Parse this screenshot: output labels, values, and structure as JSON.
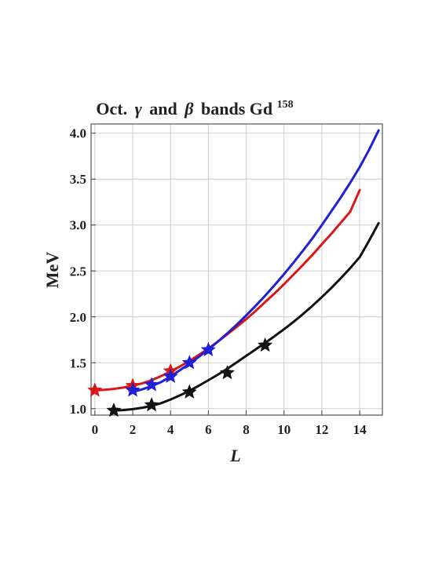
{
  "chart_data": {
    "type": "line",
    "title": {
      "prefix": "Oct.",
      "gamma": "γ",
      "and": "and",
      "beta": "β",
      "suffix": "bands Gd",
      "superscript": "158"
    },
    "xlabel": "L",
    "ylabel": "MeV",
    "xlim": [
      -0.2,
      15.2
    ],
    "ylim": [
      0.93,
      4.1
    ],
    "grid": true,
    "x_ticks": [
      0,
      2,
      4,
      6,
      8,
      10,
      12,
      14
    ],
    "x_tick_labels": [
      "0",
      "2",
      "4",
      "6",
      "8",
      "10",
      "12",
      "14"
    ],
    "y_ticks": [
      1.0,
      1.5,
      2.0,
      2.5,
      3.0,
      3.5,
      4.0
    ],
    "y_tick_labels": [
      "1.0",
      "1.5",
      "2.0",
      "2.5",
      "3.0",
      "3.5",
      "4.0"
    ],
    "series": [
      {
        "color": "#d81818",
        "curve": {
          "x": [
            0,
            0.5,
            1,
            1.5,
            2,
            2.5,
            3,
            3.5,
            4,
            4.5,
            5,
            5.5,
            6,
            6.5,
            7,
            7.5,
            8,
            8.5,
            9,
            9.5,
            10,
            10.5,
            11,
            11.5,
            12,
            12.5,
            13,
            13.5,
            14
          ],
          "y": [
            1.2,
            1.205,
            1.215,
            1.23,
            1.25,
            1.275,
            1.31,
            1.355,
            1.405,
            1.46,
            1.52,
            1.585,
            1.655,
            1.73,
            1.81,
            1.89,
            1.975,
            2.065,
            2.16,
            2.255,
            2.355,
            2.46,
            2.565,
            2.675,
            2.79,
            2.905,
            3.025,
            3.145,
            3.38
          ]
        },
        "points": {
          "x": [
            0,
            2,
            4
          ],
          "y": [
            1.2,
            1.25,
            1.41
          ]
        }
      },
      {
        "color": "#1f1fd6",
        "curve": {
          "x": [
            2,
            2.5,
            3,
            3.5,
            4,
            4.5,
            5,
            5.5,
            6,
            6.5,
            7,
            7.5,
            8,
            8.5,
            9,
            9.5,
            10,
            10.5,
            11,
            11.5,
            12,
            12.5,
            13,
            13.5,
            14,
            14.5,
            15
          ],
          "y": [
            1.18,
            1.21,
            1.245,
            1.29,
            1.35,
            1.42,
            1.49,
            1.565,
            1.645,
            1.73,
            1.82,
            1.915,
            2.015,
            2.12,
            2.23,
            2.345,
            2.465,
            2.59,
            2.72,
            2.855,
            3.0,
            3.15,
            3.3,
            3.46,
            3.63,
            3.82,
            4.03
          ]
        },
        "points": {
          "x": [
            2,
            3,
            4,
            5,
            6
          ],
          "y": [
            1.2,
            1.26,
            1.35,
            1.5,
            1.64
          ]
        }
      },
      {
        "color": "#111111",
        "curve": {
          "x": [
            1,
            1.5,
            2,
            2.5,
            3,
            3.5,
            4,
            4.5,
            5,
            5.5,
            6,
            6.5,
            7,
            7.5,
            8,
            8.5,
            9,
            9.5,
            10,
            10.5,
            11,
            11.5,
            12,
            12.5,
            13,
            13.5,
            14,
            14.5,
            15
          ],
          "y": [
            0.98,
            0.985,
            0.995,
            1.01,
            1.03,
            1.06,
            1.1,
            1.145,
            1.195,
            1.25,
            1.31,
            1.37,
            1.435,
            1.505,
            1.575,
            1.645,
            1.715,
            1.79,
            1.865,
            1.945,
            2.03,
            2.12,
            2.215,
            2.315,
            2.42,
            2.53,
            2.65,
            2.83,
            3.02
          ]
        },
        "points": {
          "x": [
            1,
            3,
            5,
            7,
            9
          ],
          "y": [
            0.98,
            1.04,
            1.18,
            1.39,
            1.69
          ]
        }
      }
    ]
  }
}
